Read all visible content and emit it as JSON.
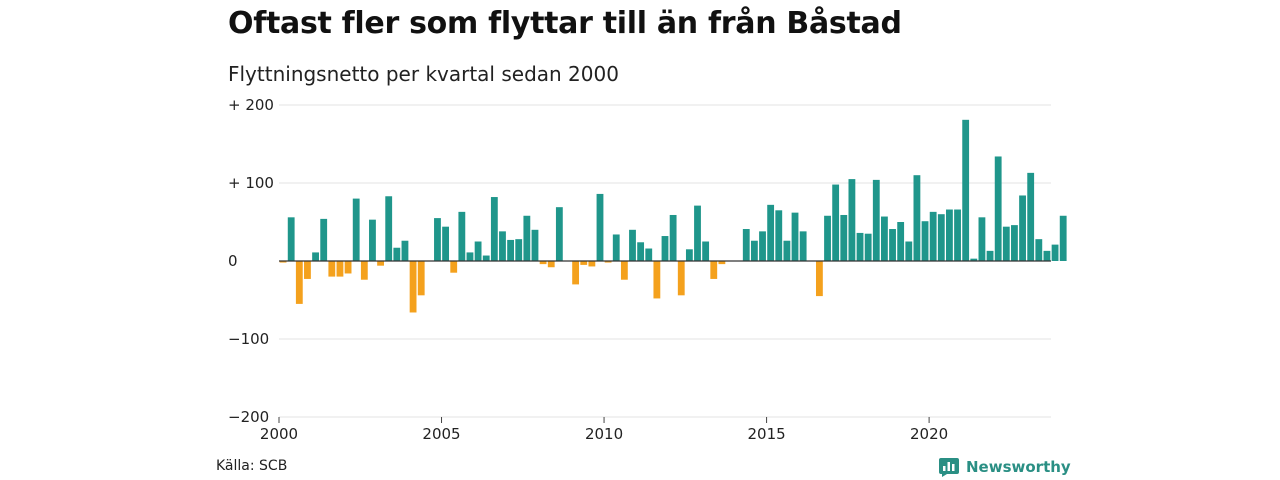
{
  "title": "Oftast fler som flyttar till än från Båstad",
  "subtitle": "Flyttningsnetto per kvartal sedan 2000",
  "source": "Källa: SCB",
  "brand": "Newsworthy",
  "colors": {
    "positive": "#1f968b",
    "negative": "#f4a11d",
    "grid": "#e3e3e3",
    "zero": "#333333",
    "brand": "#2a8f84"
  },
  "chart_data": {
    "type": "bar",
    "title": "Oftast fler som flyttar till än från Båstad",
    "subtitle": "Flyttningsnetto per kvartal sedan 2000",
    "xlabel": "",
    "ylabel": "",
    "ylim": [
      -200,
      200
    ],
    "xlim": [
      2000,
      2023.75
    ],
    "grid": true,
    "yticks": [
      {
        "value": 200,
        "label": "+ 200"
      },
      {
        "value": 100,
        "label": "+ 100"
      },
      {
        "value": 0,
        "label": "0"
      },
      {
        "value": -100,
        "label": "−100"
      },
      {
        "value": -200,
        "label": "−200"
      }
    ],
    "xticks": [
      {
        "value": 2000,
        "label": "2000"
      },
      {
        "value": 2005,
        "label": "2005"
      },
      {
        "value": 2010,
        "label": "2010"
      },
      {
        "value": 2015,
        "label": "2015"
      },
      {
        "value": 2020,
        "label": "2020"
      }
    ],
    "start_year": 2000,
    "quarters_per_year": 4,
    "values": [
      -2,
      56,
      -55,
      -23,
      11,
      54,
      -20,
      -20,
      -16,
      80,
      -24,
      53,
      -6,
      83,
      17,
      26,
      -66,
      -44,
      0,
      55,
      44,
      -15,
      63,
      11,
      25,
      7,
      82,
      38,
      27,
      28,
      58,
      40,
      -4,
      -8,
      69,
      0,
      -30,
      -5,
      -7,
      86,
      -2,
      34,
      -24,
      40,
      24,
      16,
      -48,
      32,
      59,
      -44,
      15,
      71,
      25,
      -23,
      -4,
      0,
      0,
      41,
      26,
      38,
      72,
      65,
      26,
      62,
      38,
      0,
      -45,
      58,
      98,
      59,
      105,
      36,
      35,
      104,
      57,
      41,
      50,
      25,
      110,
      51,
      63,
      60,
      66,
      66,
      181,
      3,
      56,
      13,
      134,
      44,
      46,
      84,
      113,
      28,
      13,
      21,
      58
    ]
  }
}
